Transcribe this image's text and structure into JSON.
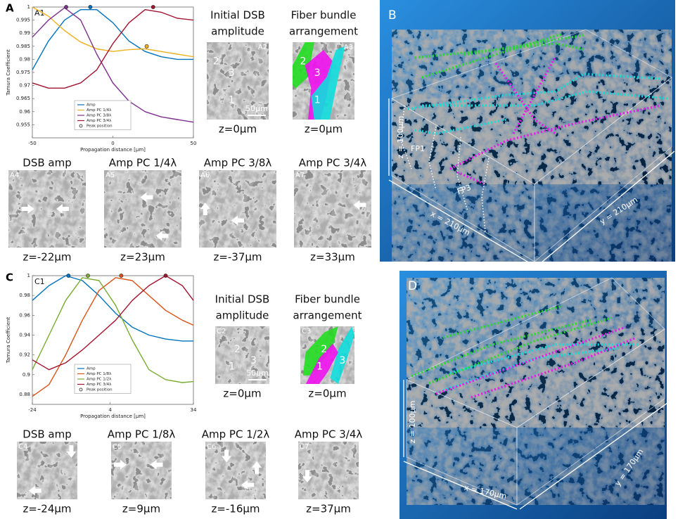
{
  "figure_labels": [
    "A",
    "C"
  ],
  "chart_data": [
    {
      "type": "line",
      "tag": "A1",
      "xlabel": "Propagation distance [µm]",
      "ylabel": "Tamura Coefficient",
      "x": [
        -50,
        -40,
        -30,
        -20,
        -10,
        0,
        10,
        20,
        30,
        40,
        50
      ],
      "xlim": [
        -50,
        50
      ],
      "xticks": [
        -50,
        0,
        50
      ],
      "ylim": [
        0.95,
        1
      ],
      "yticks": [
        0.955,
        0.96,
        0.965,
        0.97,
        0.975,
        0.98,
        0.985,
        0.99,
        0.995,
        1
      ],
      "peak_label": "Peak position",
      "series": [
        {
          "name": "Amp",
          "color": "#0072bd",
          "values": [
            0.976,
            0.987,
            0.995,
            0.999,
            0.999,
            0.994,
            0.987,
            0.983,
            0.981,
            0.98,
            0.98
          ],
          "peak_x": -14,
          "peak_y": 1
        },
        {
          "name": "Amp PC 1/4λ",
          "color": "#edb120",
          "values": [
            1,
            0.9965,
            0.991,
            0.9866,
            0.984,
            0.983,
            0.9837,
            0.984,
            0.983,
            0.982,
            0.981
          ],
          "peak_x": 21,
          "peak_y": 0.985
        },
        {
          "name": "Amp PC 3/8λ",
          "color": "#7e2f8e",
          "values": [
            0.9885,
            0.995,
            0.9997,
            0.995,
            0.982,
            0.971,
            0.964,
            0.96,
            0.958,
            0.957,
            0.956
          ],
          "peak_x": -29,
          "peak_y": 1
        },
        {
          "name": "Amp PC 3/4λ",
          "color": "#a2142f",
          "values": [
            0.971,
            0.969,
            0.969,
            0.971,
            0.976,
            0.986,
            0.994,
            0.999,
            0.998,
            0.9957,
            0.995
          ],
          "peak_x": 25,
          "peak_y": 1
        }
      ]
    },
    {
      "type": "line",
      "tag": "C1",
      "xlabel": "Propagation distance [µm]",
      "ylabel": "Tamura Coefficient",
      "x": [
        -24,
        -18,
        -12,
        -6,
        0,
        6,
        12,
        18,
        24,
        30,
        34
      ],
      "xlim": [
        -24,
        34
      ],
      "xticks": [
        -24,
        4,
        34
      ],
      "ylim": [
        0.87,
        1
      ],
      "yticks": [
        0.88,
        0.9,
        0.92,
        0.94,
        0.96,
        0.98,
        1
      ],
      "peak_label": "Peak position",
      "series": [
        {
          "name": "Amp",
          "color": "#0072bd",
          "values": [
            0.975,
            0.99,
            1,
            0.995,
            0.98,
            0.962,
            0.948,
            0.94,
            0.936,
            0.934,
            0.934
          ],
          "peak_x": -11,
          "peak_y": 1
        },
        {
          "name": "Amp PC 1/8λ",
          "color": "#d95319",
          "values": [
            0.878,
            0.89,
            0.92,
            0.955,
            0.985,
            0.998,
            0.995,
            0.98,
            0.965,
            0.955,
            0.95
          ],
          "peak_x": 8,
          "peak_y": 1
        },
        {
          "name": "Amp PC 1/2λ",
          "color": "#77ac30",
          "values": [
            0.905,
            0.94,
            0.975,
            0.998,
            0.995,
            0.97,
            0.935,
            0.905,
            0.895,
            0.892,
            0.893
          ],
          "peak_x": -4,
          "peak_y": 1
        },
        {
          "name": "Amp PC 3/4λ",
          "color": "#a2142f",
          "values": [
            0.915,
            0.905,
            0.912,
            0.925,
            0.94,
            0.955,
            0.975,
            0.99,
            1,
            0.99,
            0.975
          ],
          "peak_x": 24,
          "peak_y": 1
        }
      ]
    }
  ],
  "image_panels": [
    {
      "tag": "A2",
      "title": [
        "Initial DSB",
        "amplitude"
      ],
      "caption": "z=0µm",
      "labels": [
        "2",
        "3",
        "1"
      ],
      "scale_bar": "50µm"
    },
    {
      "tag": "A3",
      "title": [
        "Fiber bundle",
        "arrangement"
      ],
      "caption": "z=0µm",
      "labels": [
        "2",
        "3",
        "1"
      ]
    },
    {
      "tag": "A4",
      "title": [
        "DSB amp"
      ],
      "caption": "z=-22µm"
    },
    {
      "tag": "A5",
      "title": [
        "Amp PC 1/4λ"
      ],
      "caption": "z=23µm"
    },
    {
      "tag": "A6",
      "title": [
        "Amp PC 3/8λ"
      ],
      "caption": "z=-37µm"
    },
    {
      "tag": "A7",
      "title": [
        "Amp PC 3/4λ"
      ],
      "caption": "z=33µm"
    },
    {
      "tag": "C2",
      "title": [
        "Initial DSB",
        "amplitude"
      ],
      "caption": "z=0µm",
      "labels": [
        "2",
        "1",
        "3"
      ],
      "scale_bar": "50µm"
    },
    {
      "tag": "C3",
      "title": [
        "Fiber bundle",
        "arrangement"
      ],
      "caption": "z=0µm",
      "labels": [
        "2",
        "1",
        "3"
      ]
    },
    {
      "tag": "C4",
      "title": [
        "DSB amp"
      ],
      "caption": "z=-24µm"
    },
    {
      "tag": "C5",
      "title": [
        "Amp PC 1/8λ"
      ],
      "caption": "z=9µm"
    },
    {
      "tag": "C6",
      "title": [
        "Amp PC 1/2λ"
      ],
      "caption": "z=-16µm"
    },
    {
      "tag": "C7",
      "title": [
        "Amp PC 3/4λ"
      ],
      "caption": "z=37µm"
    }
  ],
  "volume_panels": [
    {
      "letter": "B",
      "labels": [
        "z = 100µm",
        "x = 210µm",
        "y = 210µm",
        "FP1",
        "FP3"
      ]
    },
    {
      "letter": "D",
      "labels": [
        "z = 100µm",
        "x = 170µm",
        "y = 170µm"
      ]
    }
  ]
}
